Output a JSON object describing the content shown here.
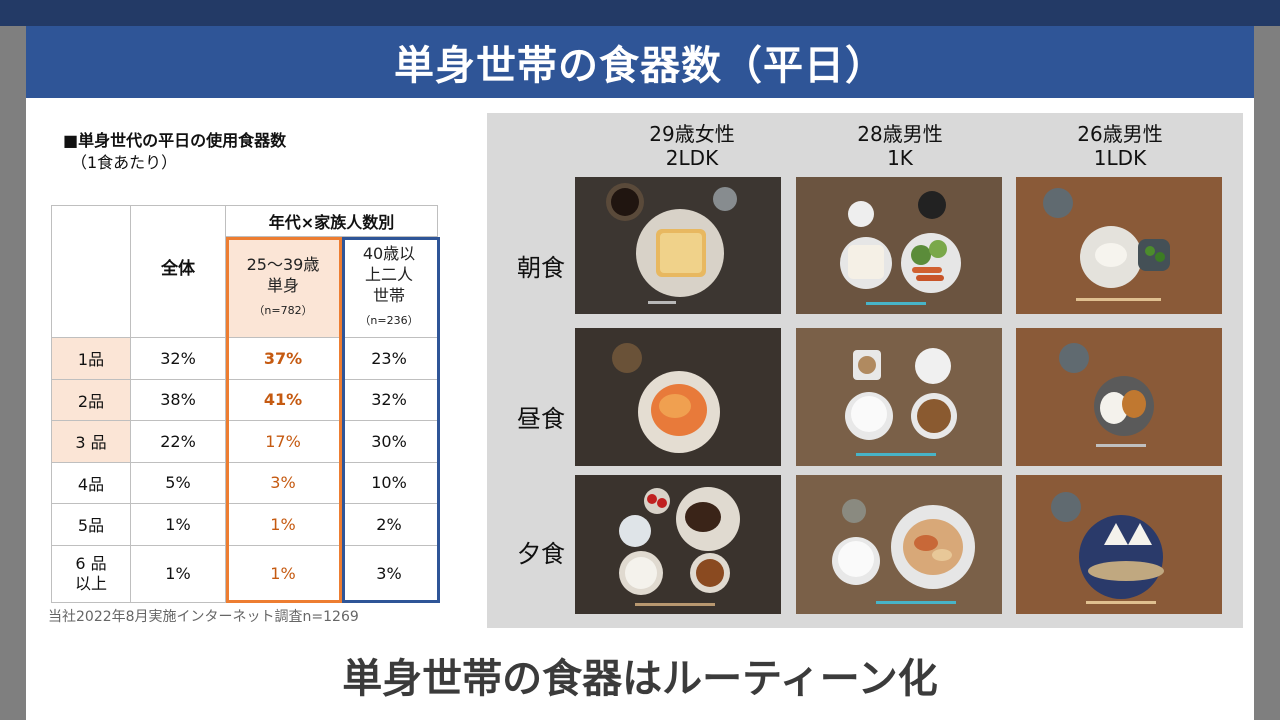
{
  "title": "単身世帯の食器数（平日）",
  "caption": {
    "line1": "■単身世代の平日の使用食器数",
    "line2": "（1食あたり）"
  },
  "table": {
    "group_header": "年代×家族人数別",
    "col_all": "全体",
    "col_young": {
      "l1": "25～39歳",
      "l2": "単身",
      "n": "（n=782）"
    },
    "col_old": {
      "l1": "40歳以",
      "l2": "上二人",
      "l3": "世帯",
      "n": "（n=236）"
    },
    "rows": [
      {
        "label": "1品",
        "all": "32%",
        "young": "37%",
        "old": "23%"
      },
      {
        "label": "2品",
        "all": "38%",
        "young": "41%",
        "old": "32%"
      },
      {
        "label": "3 品",
        "all": "22%",
        "young": "17%",
        "old": "30%"
      },
      {
        "label": "4品",
        "all": "5%",
        "young": "3%",
        "old": "10%"
      },
      {
        "label": "5品",
        "all": "1%",
        "young": "1%",
        "old": "2%"
      },
      {
        "label_l1": "6 品",
        "label_l2": "以上",
        "all": "1%",
        "young": "1%",
        "old": "3%"
      }
    ]
  },
  "source": "当社2022年8月実施インターネット調査n=1269",
  "photos": {
    "columns": [
      {
        "l1": "29歳女性",
        "l2": "2LDK"
      },
      {
        "l1": "28歳男性",
        "l2": "1K"
      },
      {
        "l1": "26歳男性",
        "l2": "1LDK"
      }
    ],
    "rows": [
      "朝食",
      "昼食",
      "夕食"
    ]
  },
  "bottom_text": "単身世帯の食器はルーティーン化",
  "colors": {
    "title_bar": "#2f5597",
    "highlight_orange": "#ed7d31",
    "highlight_peach": "#fbe5d6",
    "highlight_blue": "#2f5597"
  }
}
